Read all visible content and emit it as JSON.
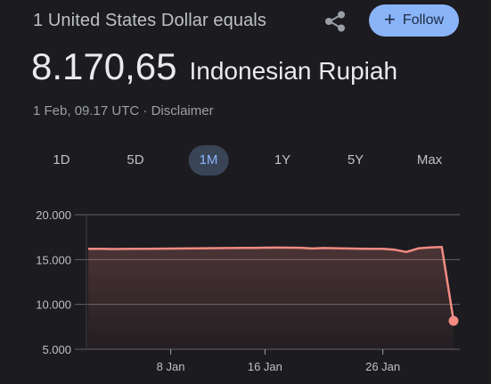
{
  "header": {
    "title": "1 United States Dollar equals",
    "share_icon": "share-icon",
    "follow_icon": "plus-icon",
    "follow_label": "Follow"
  },
  "rate": {
    "value": "8.170,65",
    "currency": "Indonesian Rupiah"
  },
  "meta": {
    "timestamp": "1 Feb, 09.17 UTC",
    "separator": "·",
    "disclaimer": "Disclaimer"
  },
  "tabs": [
    {
      "label": "1D"
    },
    {
      "label": "5D"
    },
    {
      "label": "1M",
      "active": true
    },
    {
      "label": "1Y"
    },
    {
      "label": "5Y"
    },
    {
      "label": "Max"
    }
  ],
  "colors": {
    "accent": "#8ab4f8",
    "line": "#f28b82",
    "background": "#1c1b1f"
  },
  "chart_data": {
    "type": "line",
    "y_ticks": [
      "20.000",
      "15.000",
      "10.000",
      "5.000"
    ],
    "y_tick_values": [
      20000,
      15000,
      10000,
      5000
    ],
    "x_ticks": [
      "8 Jan",
      "16 Jan",
      "26 Jan"
    ],
    "x_tick_values": [
      "2024-01-08",
      "2024-01-16",
      "2024-01-26"
    ],
    "ylim": [
      5000,
      20000
    ],
    "grid": true,
    "series": [
      {
        "x": [
          "2024-01-01",
          "2024-01-02",
          "2024-01-03",
          "2024-01-04",
          "2024-01-05",
          "2024-01-06",
          "2024-01-07",
          "2024-01-08",
          "2024-01-09",
          "2024-01-10",
          "2024-01-11",
          "2024-01-12",
          "2024-01-13",
          "2024-01-14",
          "2024-01-15",
          "2024-01-16",
          "2024-01-17",
          "2024-01-18",
          "2024-01-19",
          "2024-01-20",
          "2024-01-21",
          "2024-01-22",
          "2024-01-23",
          "2024-01-24",
          "2024-01-25",
          "2024-01-26",
          "2024-01-27",
          "2024-01-28",
          "2024-01-29",
          "2024-01-30",
          "2024-01-31",
          "2024-02-01"
        ],
        "values": [
          16200,
          16200,
          16180,
          16190,
          16200,
          16210,
          16220,
          16230,
          16240,
          16250,
          16260,
          16270,
          16280,
          16290,
          16300,
          16320,
          16330,
          16320,
          16310,
          16240,
          16280,
          16260,
          16240,
          16220,
          16210,
          16200,
          16100,
          15850,
          16250,
          16350,
          16400,
          8170
        ]
      }
    ]
  }
}
